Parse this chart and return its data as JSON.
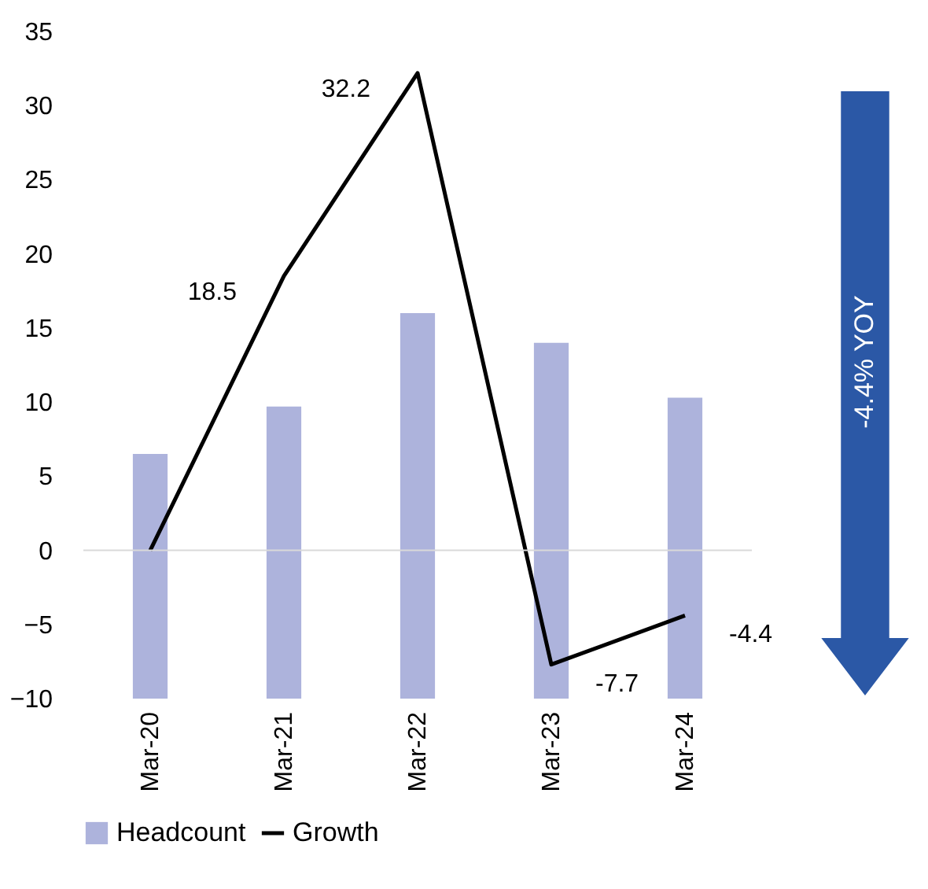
{
  "chart_data": {
    "type": "bar",
    "categories": [
      "Mar-20",
      "Mar-21",
      "Mar-22",
      "Mar-23",
      "Mar-24"
    ],
    "series": [
      {
        "name": "Headcount",
        "color": "#adb3dc",
        "base": [
          -10,
          -10,
          -10,
          -10,
          -10
        ],
        "values": [
          16.5,
          19.7,
          26,
          24,
          20.3
        ]
      },
      {
        "name": "Growth",
        "type": "line",
        "color": "#000000",
        "values": [
          0,
          18.5,
          32.2,
          -7.7,
          -4.4
        ],
        "value_labels": [
          null,
          "18.5",
          "32.2",
          "-7.7",
          "-4.4"
        ]
      }
    ],
    "ylim": [
      -10,
      35
    ],
    "yticks": [
      -10,
      -5,
      0,
      5,
      10,
      15,
      20,
      25,
      30,
      35
    ],
    "ref_lines": [
      {
        "axis": "y",
        "value": 0,
        "color": "#d9d9d9"
      }
    ],
    "annotations": [
      "-4.4% YOY"
    ],
    "grid": false,
    "legend": "bottom",
    "marker": "none",
    "line_style": "solid"
  }
}
